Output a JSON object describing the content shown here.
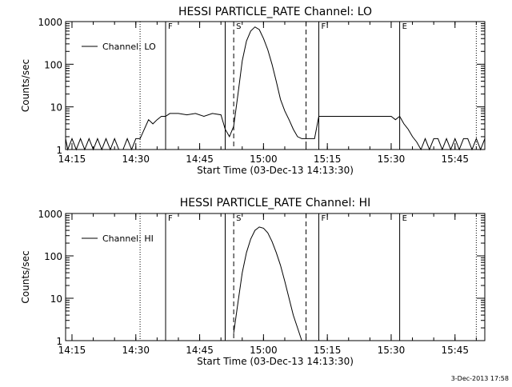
{
  "footer": {
    "stamp": "3-Dec-2013 17:58"
  },
  "chart_data": [
    {
      "type": "line",
      "title": "HESSI PARTICLE_RATE Channel: LO",
      "xlabel": "Start Time (03-Dec-13 14:13:30)",
      "ylabel": "Counts/sec",
      "xlim": [
        "14:13:30",
        "15:52:00"
      ],
      "ylim": [
        1,
        1000
      ],
      "yscale": "log",
      "xticks": [
        "14:15",
        "14:30",
        "14:45",
        "15:00",
        "15:15",
        "15:30",
        "15:45"
      ],
      "yticks": [
        "1",
        "10",
        "100",
        "1000"
      ],
      "legend": {
        "position": "top-left",
        "entries": [
          "Channel: LO"
        ]
      },
      "markers": [
        {
          "time": "14:31",
          "style": "dotted",
          "label": ""
        },
        {
          "time": "14:37",
          "style": "solid",
          "label": "F"
        },
        {
          "time": "14:51",
          "style": "solid",
          "label": ""
        },
        {
          "time": "14:53",
          "style": "dashed",
          "label": "S"
        },
        {
          "time": "15:10",
          "style": "dashed",
          "label": ""
        },
        {
          "time": "15:13",
          "style": "solid",
          "label": "F"
        },
        {
          "time": "15:32",
          "style": "solid",
          "label": "E"
        },
        {
          "time": "15:50",
          "style": "dotted",
          "label": ""
        }
      ],
      "series": [
        {
          "name": "Channel: LO",
          "x": [
            "14:13:30",
            "14:14",
            "14:15",
            "14:16",
            "14:17",
            "14:18",
            "14:19",
            "14:20",
            "14:21",
            "14:22",
            "14:23",
            "14:24",
            "14:25",
            "14:26",
            "14:27",
            "14:28",
            "14:29",
            "14:30",
            "14:31",
            "14:32",
            "14:33",
            "14:34",
            "14:35",
            "14:36",
            "14:37",
            "14:38",
            "14:40",
            "14:42",
            "14:44",
            "14:46",
            "14:48",
            "14:50",
            "14:51",
            "14:52",
            "14:53",
            "14:54",
            "14:55",
            "14:56",
            "14:57",
            "14:58",
            "14:59",
            "15:00",
            "15:01",
            "15:02",
            "15:03",
            "15:04",
            "15:05",
            "15:06",
            "15:07",
            "15:08",
            "15:09",
            "15:10",
            "15:11",
            "15:12",
            "15:13",
            "15:14",
            "15:16",
            "15:18",
            "15:20",
            "15:22",
            "15:24",
            "15:26",
            "15:28",
            "15:30",
            "15:31",
            "15:32",
            "15:33",
            "15:34",
            "15:35",
            "15:36",
            "15:37",
            "15:38",
            "15:39",
            "15:40",
            "15:41",
            "15:42",
            "15:43",
            "15:44",
            "15:45",
            "15:46",
            "15:47",
            "15:48",
            "15:49",
            "15:50",
            "15:51",
            "15:52"
          ],
          "y": [
            1.8,
            1,
            1.8,
            1,
            1.8,
            1,
            1.8,
            1,
            1.8,
            1,
            1.8,
            1,
            1.8,
            1,
            1,
            1.8,
            1,
            1.8,
            1.8,
            3,
            5,
            4,
            5,
            6,
            6,
            7,
            7,
            6.5,
            7,
            6,
            7,
            6.5,
            3,
            2,
            3.5,
            20,
            120,
            350,
            600,
            750,
            650,
            400,
            220,
            100,
            40,
            15,
            8,
            5,
            3,
            2,
            1.8,
            1.8,
            1.8,
            1.8,
            6,
            6,
            6,
            6,
            6,
            6,
            6,
            6,
            6,
            6,
            5,
            6,
            4,
            3,
            2,
            1.5,
            1,
            1.8,
            1,
            1.8,
            1.8,
            1,
            1.8,
            1,
            1.8,
            1,
            1.8,
            1.8,
            1,
            1.8,
            1,
            1.8
          ]
        }
      ]
    },
    {
      "type": "line",
      "title": "HESSI PARTICLE_RATE Channel: HI",
      "xlabel": "Start Time (03-Dec-13 14:13:30)",
      "ylabel": "Counts/sec",
      "xlim": [
        "14:13:30",
        "15:52:00"
      ],
      "ylim": [
        1,
        1000
      ],
      "yscale": "log",
      "xticks": [
        "14:15",
        "14:30",
        "14:45",
        "15:00",
        "15:15",
        "15:30",
        "15:45"
      ],
      "yticks": [
        "1",
        "10",
        "100",
        "1000"
      ],
      "legend": {
        "position": "top-left",
        "entries": [
          "Channel: HI"
        ]
      },
      "markers": [
        {
          "time": "14:31",
          "style": "dotted",
          "label": ""
        },
        {
          "time": "14:37",
          "style": "solid",
          "label": "F"
        },
        {
          "time": "14:51",
          "style": "solid",
          "label": ""
        },
        {
          "time": "14:53",
          "style": "dashed",
          "label": "S"
        },
        {
          "time": "15:10",
          "style": "dashed",
          "label": ""
        },
        {
          "time": "15:13",
          "style": "solid",
          "label": "F"
        },
        {
          "time": "15:32",
          "style": "solid",
          "label": "E"
        },
        {
          "time": "15:50",
          "style": "dotted",
          "label": ""
        }
      ],
      "series": [
        {
          "name": "Channel: HI",
          "x": [
            "14:53",
            "14:54",
            "14:55",
            "14:56",
            "14:57",
            "14:58",
            "14:59",
            "15:00",
            "15:01",
            "15:02",
            "15:03",
            "15:04",
            "15:05",
            "15:06",
            "15:07",
            "15:08",
            "15:09"
          ],
          "y": [
            1.5,
            8,
            40,
            120,
            250,
            400,
            480,
            450,
            350,
            220,
            120,
            60,
            25,
            10,
            4,
            2,
            1
          ]
        }
      ]
    }
  ]
}
